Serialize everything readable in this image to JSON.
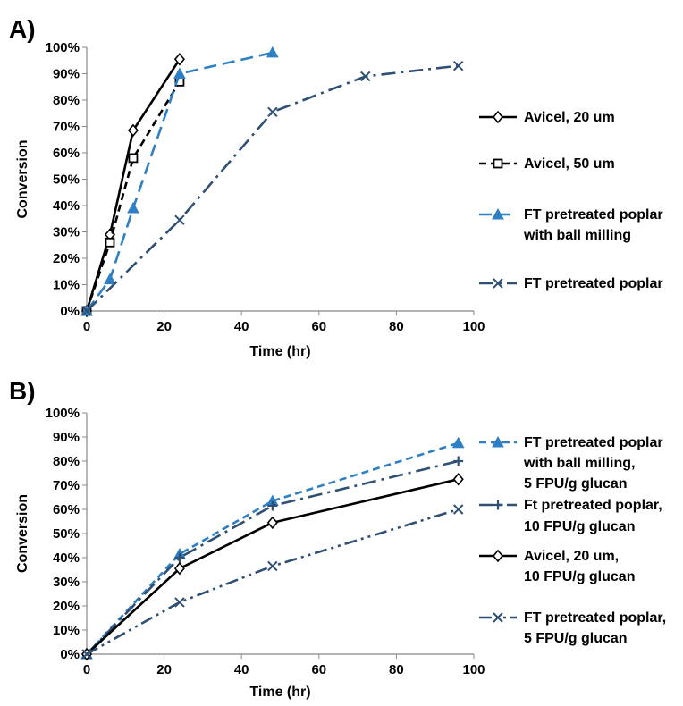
{
  "chart_data": [
    {
      "panel_label": "A)",
      "type": "line",
      "xlabel": "Time (hr)",
      "ylabel": "Conversion",
      "xlim": [
        0,
        100
      ],
      "ylim": [
        0,
        100
      ],
      "xticks": [
        "0",
        "20",
        "40",
        "60",
        "80",
        "100"
      ],
      "yticks": [
        "0%",
        "10%",
        "20%",
        "30%",
        "40%",
        "50%",
        "60%",
        "70%",
        "80%",
        "90%",
        "100%"
      ],
      "grid": false,
      "legend_position": "right",
      "series": [
        {
          "name": [
            "Avicel, 20 um"
          ],
          "color": "#000000",
          "dash": "solid",
          "marker": "diamond",
          "x": [
            0,
            6,
            12,
            24
          ],
          "y": [
            0,
            29,
            68.5,
            95.5
          ]
        },
        {
          "name": [
            "Avicel, 50 um"
          ],
          "color": "#000000",
          "dash": "dashed",
          "marker": "square",
          "x": [
            0,
            6,
            12,
            24
          ],
          "y": [
            0,
            26,
            58,
            87
          ]
        },
        {
          "name": [
            "FT pretreated poplar",
            "with ball milling"
          ],
          "color": "#2e7fc4",
          "dash": "long-dash",
          "marker": "triangle",
          "x": [
            0,
            6,
            12,
            24,
            48
          ],
          "y": [
            0,
            12,
            39,
            90,
            98
          ]
        },
        {
          "name": [
            "FT pretreated poplar"
          ],
          "color": "#2f4f73",
          "dash": "dash-dot",
          "marker": "x",
          "x": [
            0,
            24,
            48,
            72,
            96
          ],
          "y": [
            0,
            34.5,
            75.5,
            89,
            93
          ]
        }
      ]
    },
    {
      "panel_label": "B)",
      "type": "line",
      "xlabel": "Time (hr)",
      "ylabel": "Conversion",
      "xlim": [
        0,
        100
      ],
      "ylim": [
        0,
        100
      ],
      "xticks": [
        "0",
        "20",
        "40",
        "60",
        "80",
        "100"
      ],
      "yticks": [
        "0%",
        "10%",
        "20%",
        "30%",
        "40%",
        "50%",
        "60%",
        "70%",
        "80%",
        "90%",
        "100%"
      ],
      "grid": false,
      "legend_position": "right",
      "series": [
        {
          "name": [
            "FT pretreated poplar",
            "with ball milling,",
            "5 FPU/g glucan"
          ],
          "color": "#2e7fc4",
          "dash": "dashed",
          "marker": "triangle",
          "x": [
            0,
            24,
            48,
            96
          ],
          "y": [
            0,
            41.5,
            63.5,
            87.5
          ]
        },
        {
          "name": [
            "Ft pretreated poplar,",
            "10 FPU/g glucan"
          ],
          "color": "#2f4f73",
          "dash": "dash-dot",
          "marker": "plus",
          "x": [
            0,
            24,
            48,
            96
          ],
          "y": [
            0,
            40,
            61.5,
            80
          ]
        },
        {
          "name": [
            "Avicel, 20 um,",
            "10 FPU/g glucan"
          ],
          "color": "#000000",
          "dash": "solid",
          "marker": "diamond",
          "x": [
            0,
            24,
            48,
            96
          ],
          "y": [
            0,
            35.5,
            54.5,
            72.5
          ]
        },
        {
          "name": [
            "FT pretreated poplar,",
            "5 FPU/g glucan"
          ],
          "color": "#2f4f73",
          "dash": "dash-dot-dot",
          "marker": "x",
          "x": [
            0,
            24,
            48,
            96
          ],
          "y": [
            0,
            21.5,
            36.5,
            60
          ]
        }
      ]
    }
  ]
}
